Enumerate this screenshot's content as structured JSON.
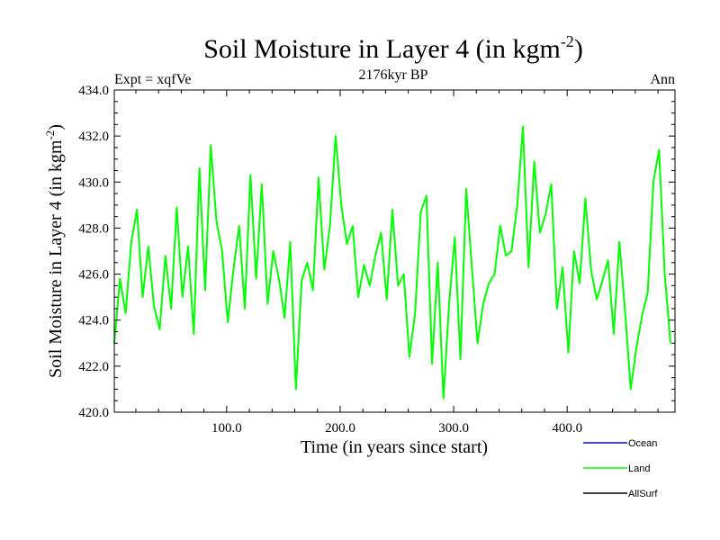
{
  "chart_data": {
    "type": "line",
    "title": "Soil Moisture in Layer 4 (in kgm",
    "title_sup": "-2",
    "title_close": ")",
    "subtitle": "2176kyr BP",
    "left_label": "Expt = xqfVe",
    "right_label": "Ann",
    "xlabel": "Time (in years since start)",
    "ylabel": "Soil Moisture in Layer 4 (in kgm",
    "ylabel_sup": "-2",
    "ylabel_close": ")",
    "xlim": [
      1,
      495
    ],
    "ylim": [
      420.0,
      434.0
    ],
    "xticks": [
      100,
      200,
      300,
      400
    ],
    "xtick_labels": [
      "100.0",
      "200.0",
      "300.0",
      "400.0"
    ],
    "yticks": [
      420,
      422,
      424,
      426,
      428,
      430,
      432,
      434
    ],
    "ytick_labels": [
      "420.0",
      "422.0",
      "424.0",
      "426.0",
      "428.0",
      "430.0",
      "432.0",
      "434.0"
    ],
    "legend": [
      {
        "name": "Ocean",
        "color": "#0000ff"
      },
      {
        "name": "Land",
        "color": "#00ff00"
      },
      {
        "name": "AllSurf",
        "color": "#000000"
      }
    ],
    "series": [
      {
        "name": "Land",
        "color": "#00ff00",
        "x_start": 1,
        "x_step": 5,
        "values": [
          423.0,
          425.8,
          424.3,
          427.4,
          428.8,
          425.0,
          427.2,
          424.6,
          423.6,
          426.8,
          424.5,
          428.9,
          425.0,
          427.2,
          423.4,
          430.6,
          425.3,
          431.6,
          428.3,
          427.0,
          423.9,
          426.2,
          428.1,
          424.5,
          430.3,
          425.8,
          429.9,
          424.7,
          427.0,
          425.8,
          424.1,
          427.4,
          421.0,
          425.7,
          426.5,
          425.3,
          430.2,
          426.2,
          428.1,
          432.0,
          429.0,
          427.3,
          428.1,
          425.0,
          426.4,
          425.5,
          426.8,
          427.8,
          424.9,
          428.8,
          425.5,
          426.0,
          422.4,
          424.3,
          428.7,
          429.4,
          422.1,
          426.5,
          420.6,
          424.7,
          427.6,
          422.3,
          429.7,
          426.3,
          423.0,
          424.7,
          425.6,
          426.0,
          428.1,
          426.8,
          427.0,
          429.0,
          432.4,
          426.3,
          430.9,
          427.8,
          428.6,
          429.9,
          424.5,
          426.3,
          422.6,
          427.0,
          425.6,
          429.3,
          426.2,
          424.9,
          425.7,
          426.6,
          423.4,
          427.4,
          424.4,
          421.0,
          422.8,
          424.2,
          425.2,
          430.0,
          431.4,
          426.0,
          423.0
        ]
      }
    ]
  }
}
